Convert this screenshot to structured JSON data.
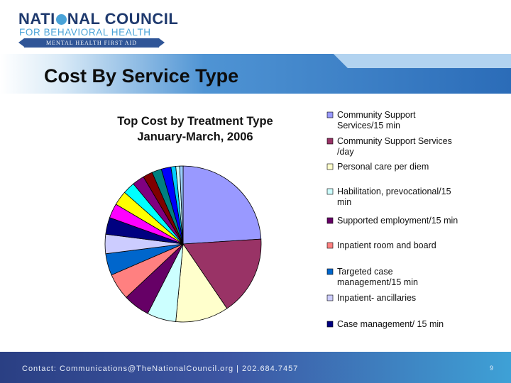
{
  "logo": {
    "line1": "NATIONAL COUNCIL",
    "line1_prefix": "NATI",
    "line1_suffix": "NAL COUNCIL",
    "line2": "FOR BEHAVIORAL HEALTH",
    "line3": "MENTAL HEALTH FIRST AID"
  },
  "slide": {
    "title": "Cost By Service Type"
  },
  "footer": {
    "contact": "Contact: Communications@TheNationalCouncil.org  |  202.684.7457",
    "page_number": "9"
  },
  "colors": {
    "banner": "#2f6fbf",
    "banner_light": "#5fa8e0",
    "footer_dark": "#2a3f83",
    "footer_light": "#3ea1d6"
  },
  "chart_data": {
    "type": "pie",
    "title": "Top Cost by Treatment Type",
    "subtitle": "January-March, 2006",
    "legend_position": "right",
    "slices": [
      {
        "label": "Community Support Services/15 min",
        "value": 24,
        "color": "#9999ff"
      },
      {
        "label": "Community Support Services /day",
        "value": 16.5,
        "color": "#993366"
      },
      {
        "label": "Personal care per diem",
        "value": 11,
        "color": "#ffffcc"
      },
      {
        "label": "Habilitation, prevocational/15 min",
        "value": 6,
        "color": "#ccffff"
      },
      {
        "label": "Supported employment/15 min",
        "value": 5.5,
        "color": "#660066"
      },
      {
        "label": "Inpatient room and board",
        "value": 5.5,
        "color": "#ff8080"
      },
      {
        "label": "Targeted case management/15 min",
        "value": 4.5,
        "color": "#0066cc"
      },
      {
        "label": "Inpatient- ancillaries",
        "value": 4,
        "color": "#ccccff"
      },
      {
        "label": "Case management/ 15 min",
        "value": 3.5,
        "color": "#000080"
      },
      {
        "label": "",
        "value": 3,
        "color": "#ff00ff"
      },
      {
        "label": "",
        "value": 3,
        "color": "#ffff00"
      },
      {
        "label": "",
        "value": 2.5,
        "color": "#00ffff"
      },
      {
        "label": "",
        "value": 2.5,
        "color": "#800080"
      },
      {
        "label": "",
        "value": 2,
        "color": "#800000"
      },
      {
        "label": "",
        "value": 2,
        "color": "#008080"
      },
      {
        "label": "",
        "value": 2,
        "color": "#0000ff"
      },
      {
        "label": "",
        "value": 1,
        "color": "#00ccff"
      },
      {
        "label": "",
        "value": 0.8,
        "color": "#ccffff"
      },
      {
        "label": "",
        "value": 0.7,
        "color": "#99ccff"
      }
    ]
  }
}
